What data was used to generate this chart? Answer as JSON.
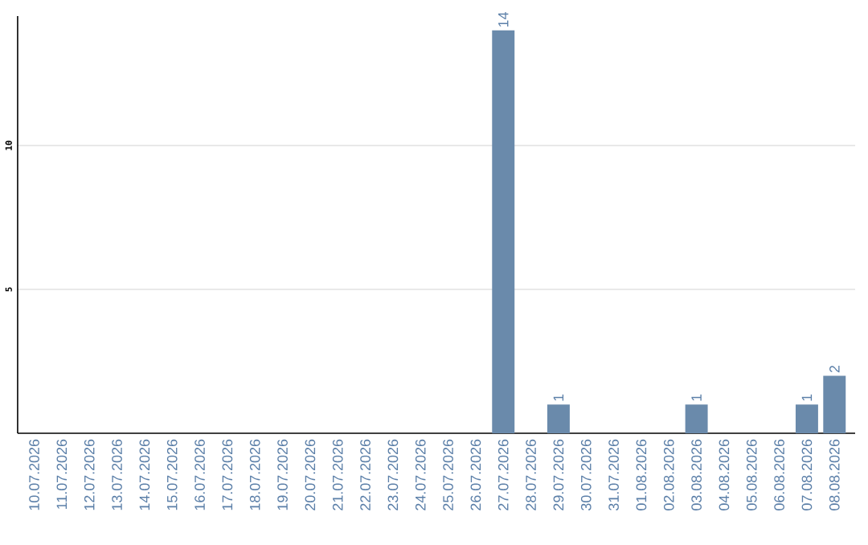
{
  "chart_data": {
    "type": "bar",
    "categories": [
      "10.07.2026",
      "11.07.2026",
      "12.07.2026",
      "13.07.2026",
      "14.07.2026",
      "15.07.2026",
      "16.07.2026",
      "17.07.2026",
      "18.07.2026",
      "19.07.2026",
      "20.07.2026",
      "21.07.2026",
      "22.07.2026",
      "23.07.2026",
      "24.07.2026",
      "25.07.2026",
      "26.07.2026",
      "27.07.2026",
      "28.07.2026",
      "29.07.2026",
      "30.07.2026",
      "31.07.2026",
      "01.08.2026",
      "02.08.2026",
      "03.08.2026",
      "04.08.2026",
      "05.08.2026",
      "06.08.2026",
      "07.08.2026",
      "08.08.2026"
    ],
    "values": [
      0,
      0,
      0,
      0,
      0,
      0,
      0,
      0,
      0,
      0,
      0,
      0,
      0,
      0,
      0,
      0,
      0,
      14,
      0,
      1,
      0,
      0,
      0,
      0,
      1,
      0,
      0,
      0,
      1,
      2
    ],
    "value_labels": [
      null,
      null,
      null,
      null,
      null,
      null,
      null,
      null,
      null,
      null,
      null,
      null,
      null,
      null,
      null,
      null,
      null,
      "14",
      null,
      "1",
      null,
      null,
      null,
      null,
      "1",
      null,
      null,
      null,
      "1",
      "2"
    ],
    "color": "#6a8aab",
    "ylim": [
      0,
      14.5
    ],
    "yticks": [
      5,
      10
    ],
    "grid": "y"
  }
}
